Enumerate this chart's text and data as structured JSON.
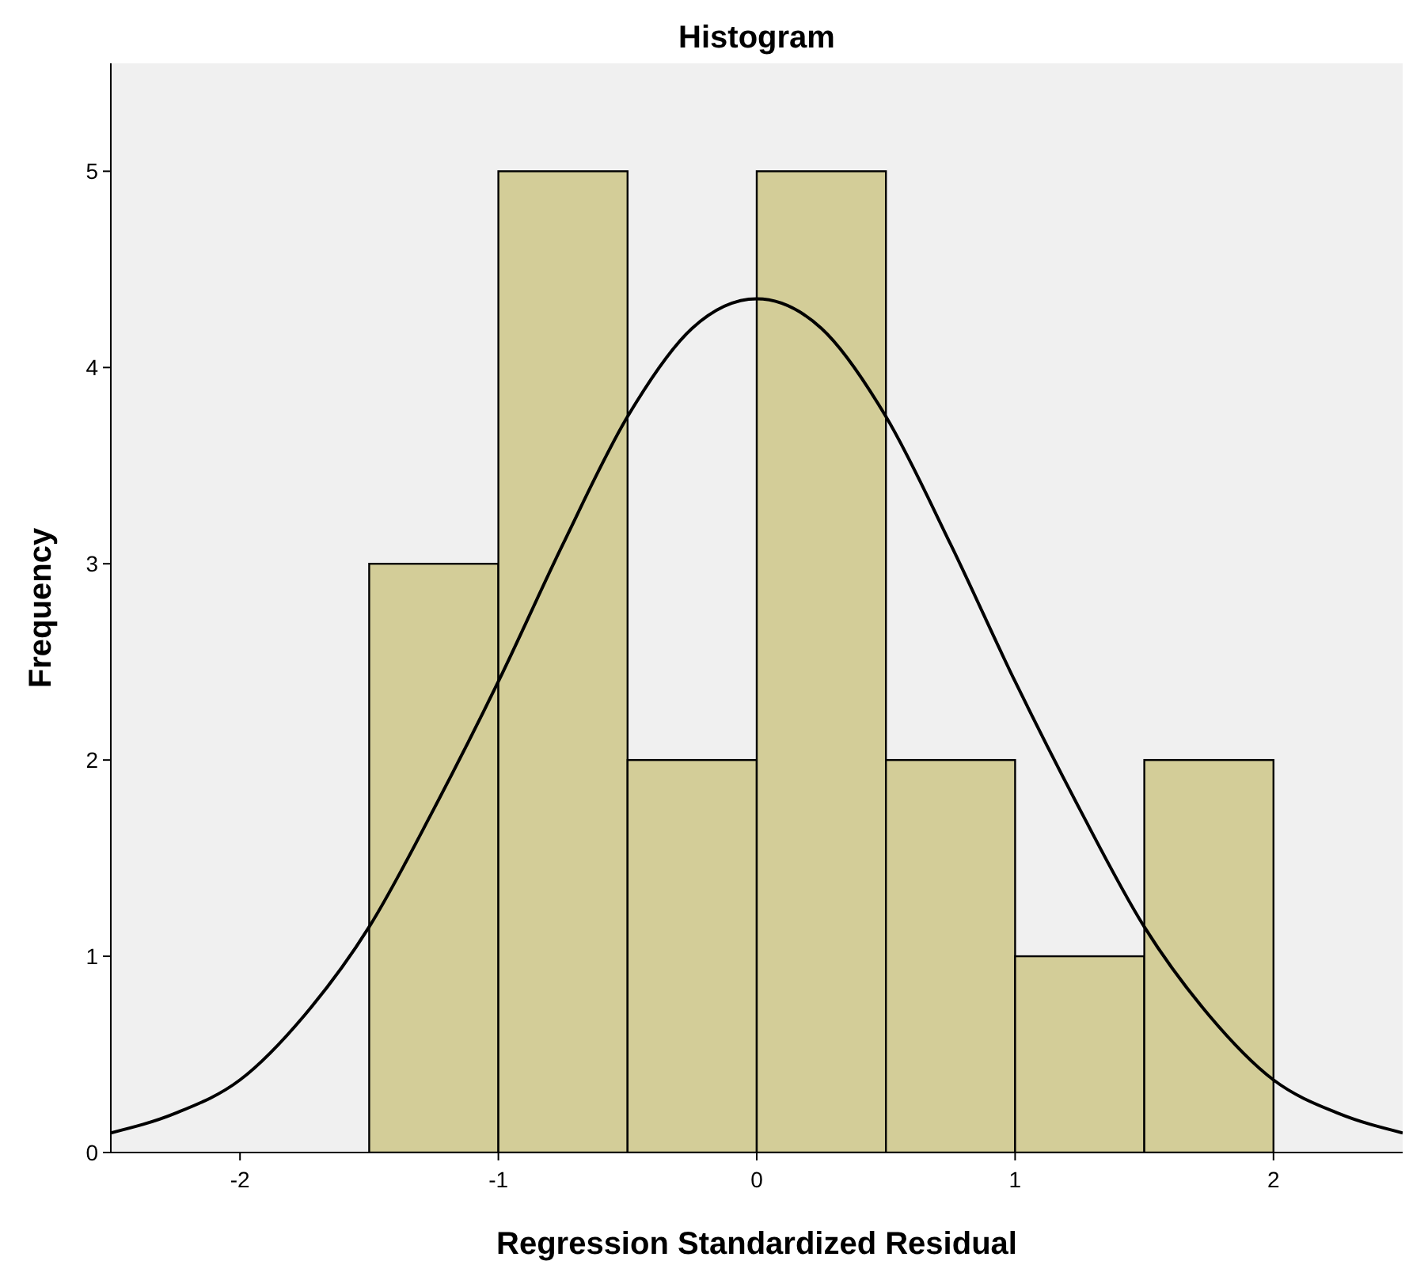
{
  "chart_data": {
    "type": "histogram",
    "title": "Histogram",
    "xlabel": "Regression Standardized Residual",
    "ylabel": "Frequency",
    "bins": [
      -1.5,
      -1,
      -0.5,
      0,
      0.5,
      1,
      1.5,
      2
    ],
    "values": [
      3,
      5,
      2,
      5,
      2,
      1,
      2
    ],
    "color": "#d3cd98",
    "series": [
      {
        "type": "line",
        "color": "#000000",
        "x": [
          -2.5,
          -2.25,
          -2,
          -1.75,
          -1.5,
          -1.25,
          -1,
          -0.75,
          -0.5,
          -0.25,
          0,
          0.25,
          0.5,
          0.75,
          1,
          1.25,
          1.5,
          1.75,
          2,
          2.25,
          2.5
        ],
        "values": [
          0.1,
          0.2,
          0.37,
          0.7,
          1.15,
          1.75,
          2.4,
          3.1,
          3.75,
          4.2,
          4.35,
          4.2,
          3.75,
          3.1,
          2.4,
          1.75,
          1.15,
          0.7,
          0.37,
          0.2,
          0.1
        ]
      }
    ],
    "xlim": [
      -2.5,
      2.5
    ],
    "ylim": [
      0,
      5.55
    ],
    "xticks": [
      -2,
      -1,
      0,
      1,
      2
    ],
    "yticks": [
      0,
      1,
      2,
      3,
      4,
      5
    ],
    "grid": false
  }
}
